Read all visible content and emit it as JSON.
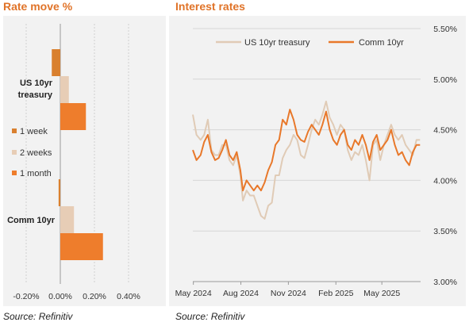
{
  "colors": {
    "accent": "#e07328",
    "week1": "#d9802f",
    "weeks2": "#e7cdb6",
    "month1": "#ee7d2c",
    "us10yr": "#e0cbb6",
    "comm10yr": "#e8782a",
    "panel_bg": "#f2f2f2"
  },
  "left_panel": {
    "title": "Rate move %",
    "source": "Source: Refinitiv"
  },
  "right_panel": {
    "title": "Interest rates",
    "source": "Source: Refinitiv"
  },
  "chart_data": [
    {
      "type": "bar",
      "orientation": "horizontal",
      "title": "Rate move %",
      "categories": [
        "US 10yr treasury",
        "Comm 10yr"
      ],
      "series": [
        {
          "name": "1 week",
          "values": [
            -0.05,
            -0.01
          ]
        },
        {
          "name": "2 weeks",
          "values": [
            0.05,
            0.08
          ]
        },
        {
          "name": "1 month",
          "values": [
            0.15,
            0.25
          ]
        }
      ],
      "x_ticks": [
        "-0.20%",
        "0.00%",
        "0.20%",
        "0.40%"
      ],
      "xlim": [
        -0.25,
        0.45
      ],
      "grid": true,
      "legend_position": "left-middle"
    },
    {
      "type": "line",
      "title": "Interest rates",
      "x_ticks": [
        "May 2024",
        "Aug 2024",
        "Nov 2024",
        "Feb 2025",
        "May 2025"
      ],
      "y_ticks": [
        "5.50%",
        "5.00%",
        "4.50%",
        "4.00%",
        "3.50%",
        "3.00%"
      ],
      "ylim": [
        3.0,
        5.5
      ],
      "xlim": [
        "2024-04-30",
        "2025-07-15"
      ],
      "y_axis_position": "right",
      "grid": true,
      "legend_position": "top",
      "series": [
        {
          "name": "US 10yr treasury",
          "x": [
            "2024-04-30",
            "2024-05-07",
            "2024-05-15",
            "2024-05-22",
            "2024-05-29",
            "2024-06-05",
            "2024-06-12",
            "2024-06-19",
            "2024-06-26",
            "2024-07-03",
            "2024-07-10",
            "2024-07-17",
            "2024-07-24",
            "2024-07-31",
            "2024-08-05",
            "2024-08-12",
            "2024-08-19",
            "2024-08-26",
            "2024-09-02",
            "2024-09-09",
            "2024-09-16",
            "2024-09-23",
            "2024-09-30",
            "2024-10-07",
            "2024-10-14",
            "2024-10-21",
            "2024-10-28",
            "2024-11-04",
            "2024-11-11",
            "2024-11-18",
            "2024-11-25",
            "2024-12-02",
            "2024-12-09",
            "2024-12-16",
            "2024-12-23",
            "2024-12-30",
            "2025-01-06",
            "2025-01-13",
            "2025-01-20",
            "2025-01-27",
            "2025-02-03",
            "2025-02-10",
            "2025-02-17",
            "2025-02-24",
            "2025-03-03",
            "2025-03-10",
            "2025-03-17",
            "2025-03-24",
            "2025-03-31",
            "2025-04-07",
            "2025-04-14",
            "2025-04-21",
            "2025-04-28",
            "2025-05-05",
            "2025-05-12",
            "2025-05-19",
            "2025-05-26",
            "2025-06-02",
            "2025-06-09",
            "2025-06-16",
            "2025-06-23",
            "2025-06-30",
            "2025-07-07",
            "2025-07-14"
          ],
          "values": [
            4.65,
            4.45,
            4.4,
            4.45,
            4.6,
            4.3,
            4.25,
            4.25,
            4.35,
            4.35,
            4.2,
            4.15,
            4.25,
            4.05,
            3.8,
            3.9,
            3.85,
            3.85,
            3.75,
            3.65,
            3.62,
            3.75,
            3.78,
            4.05,
            4.05,
            4.22,
            4.3,
            4.35,
            4.45,
            4.4,
            4.25,
            4.22,
            4.35,
            4.5,
            4.6,
            4.55,
            4.65,
            4.78,
            4.62,
            4.55,
            4.45,
            4.55,
            4.5,
            4.3,
            4.2,
            4.28,
            4.25,
            4.35,
            4.2,
            4.0,
            4.35,
            4.4,
            4.2,
            4.35,
            4.45,
            4.55,
            4.45,
            4.4,
            4.45,
            4.35,
            4.3,
            4.25,
            4.4,
            4.4
          ]
        },
        {
          "name": "Comm 10yr",
          "x": [
            "2024-04-30",
            "2024-05-07",
            "2024-05-15",
            "2024-05-22",
            "2024-05-29",
            "2024-06-05",
            "2024-06-12",
            "2024-06-19",
            "2024-06-26",
            "2024-07-03",
            "2024-07-10",
            "2024-07-17",
            "2024-07-24",
            "2024-07-31",
            "2024-08-05",
            "2024-08-12",
            "2024-08-19",
            "2024-08-26",
            "2024-09-02",
            "2024-09-09",
            "2024-09-16",
            "2024-09-23",
            "2024-09-30",
            "2024-10-07",
            "2024-10-14",
            "2024-10-21",
            "2024-10-28",
            "2024-11-04",
            "2024-11-11",
            "2024-11-18",
            "2024-11-25",
            "2024-12-02",
            "2024-12-09",
            "2024-12-16",
            "2024-12-23",
            "2024-12-30",
            "2025-01-06",
            "2025-01-13",
            "2025-01-20",
            "2025-01-27",
            "2025-02-03",
            "2025-02-10",
            "2025-02-17",
            "2025-02-24",
            "2025-03-03",
            "2025-03-10",
            "2025-03-17",
            "2025-03-24",
            "2025-03-31",
            "2025-04-07",
            "2025-04-14",
            "2025-04-21",
            "2025-04-28",
            "2025-05-05",
            "2025-05-12",
            "2025-05-19",
            "2025-05-26",
            "2025-06-02",
            "2025-06-09",
            "2025-06-16",
            "2025-06-23",
            "2025-06-30",
            "2025-07-07",
            "2025-07-14"
          ],
          "values": [
            4.3,
            4.2,
            4.25,
            4.38,
            4.45,
            4.28,
            4.2,
            4.22,
            4.3,
            4.4,
            4.25,
            4.2,
            4.28,
            4.1,
            3.9,
            4.0,
            3.95,
            3.9,
            3.95,
            3.9,
            3.98,
            4.1,
            4.18,
            4.35,
            4.4,
            4.6,
            4.55,
            4.7,
            4.6,
            4.45,
            4.4,
            4.38,
            4.48,
            4.55,
            4.5,
            4.45,
            4.55,
            4.68,
            4.5,
            4.4,
            4.35,
            4.45,
            4.5,
            4.35,
            4.3,
            4.4,
            4.35,
            4.45,
            4.35,
            4.2,
            4.38,
            4.45,
            4.3,
            4.35,
            4.4,
            4.5,
            4.35,
            4.25,
            4.28,
            4.2,
            4.15,
            4.28,
            4.35,
            4.35
          ]
        }
      ]
    }
  ]
}
